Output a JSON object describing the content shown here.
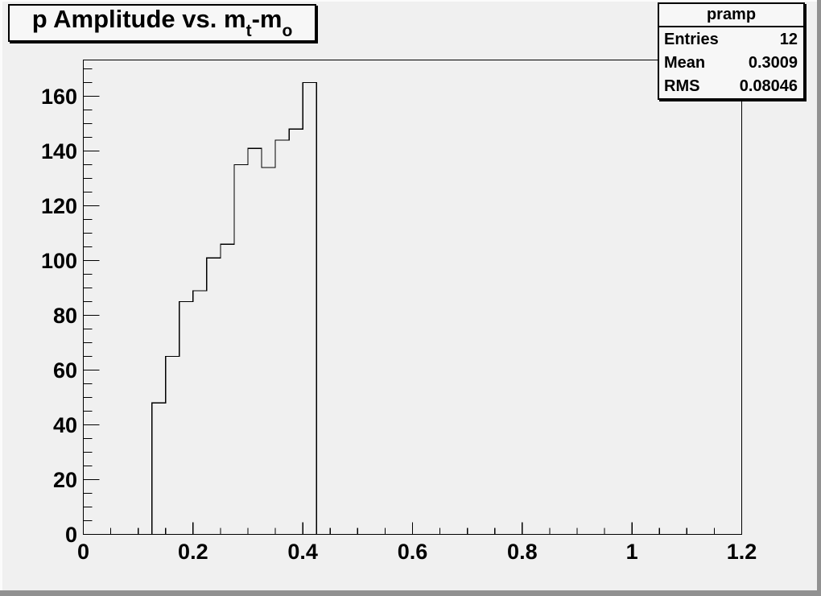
{
  "window": {
    "background_color": "#f0f0f0",
    "bevel_highlight_color": "#fbfbfb",
    "bevel_shadow_color": "#919191"
  },
  "title_box": {
    "plain_text": "p Amplitude vs. m_t-m_o",
    "segments": [
      {
        "text": "p Amplitude vs. m",
        "sub": false
      },
      {
        "text": "t",
        "sub": true
      },
      {
        "text": "-m",
        "sub": false
      },
      {
        "text": "o",
        "sub": true
      }
    ]
  },
  "stats_box": {
    "header": "pramp",
    "rows": [
      {
        "label": "Entries",
        "value": "12"
      },
      {
        "label": "Mean",
        "value": "0.3009"
      },
      {
        "label": "RMS",
        "value": "0.08046"
      }
    ]
  },
  "chart_data": {
    "type": "bar",
    "style": "root-step-histogram",
    "title": "p Amplitude vs. m_t-m_o",
    "histogram_name": "pramp",
    "xlabel": "",
    "ylabel": "",
    "xlim": [
      0,
      1.2
    ],
    "ylim": [
      0,
      173.25
    ],
    "grid": false,
    "line_color": "#000000",
    "frame_fill": "#f0f0f0",
    "bin_width": 0.025,
    "bin_edges": [
      0.125,
      0.15,
      0.175,
      0.2,
      0.225,
      0.25,
      0.275,
      0.3,
      0.325,
      0.35,
      0.375,
      0.4,
      0.425
    ],
    "bin_centers": [
      0.1375,
      0.1625,
      0.1875,
      0.2125,
      0.2375,
      0.2625,
      0.2875,
      0.3125,
      0.3375,
      0.3625,
      0.3875,
      0.4125
    ],
    "values": [
      48,
      65,
      85,
      89,
      101,
      106,
      135,
      141,
      134,
      144,
      148,
      165
    ],
    "baseline_value": 0,
    "stats": {
      "entries": 12,
      "mean": 0.3009,
      "rms": 0.08046
    },
    "x_major_ticks": [
      0,
      0.2,
      0.4,
      0.6,
      0.8,
      1,
      1.2
    ],
    "x_tick_labels": [
      "0",
      "0.2",
      "0.4",
      "0.6",
      "0.8",
      "1",
      "1.2"
    ],
    "x_minor_step": 0.05,
    "y_major_ticks": [
      0,
      20,
      40,
      60,
      80,
      100,
      120,
      140,
      160
    ],
    "y_tick_labels": [
      "0",
      "20",
      "40",
      "60",
      "80",
      "100",
      "120",
      "140",
      "160"
    ],
    "y_minor_step": 5,
    "legend_position": "none"
  }
}
